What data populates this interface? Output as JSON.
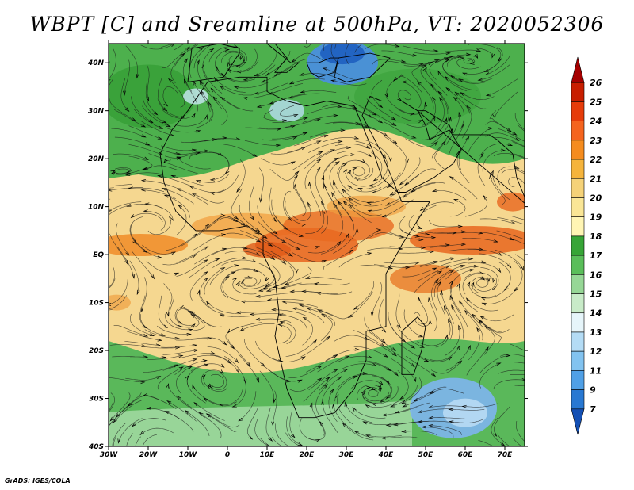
{
  "title": "WBPT [C] and Sreamline at 500hPa, VT: 2020052306",
  "footer": "GrADS: IGES/COLA",
  "map": {
    "lon_labels": [
      "30W",
      "20W",
      "10W",
      "0",
      "10E",
      "20E",
      "30E",
      "40E",
      "50E",
      "60E",
      "70E"
    ],
    "lat_labels": [
      "40N",
      "30N",
      "20N",
      "10N",
      "EQ",
      "10S",
      "20S",
      "30S",
      "40S"
    ],
    "lon_range": [
      -30,
      75
    ],
    "lat_range": [
      -40,
      44
    ]
  },
  "colorbar": {
    "labels": [
      "26",
      "25",
      "24",
      "23",
      "22",
      "21",
      "20",
      "19",
      "18",
      "17",
      "16",
      "15",
      "14",
      "13",
      "12",
      "11",
      "9",
      "7"
    ],
    "colors": [
      "#a50000",
      "#c81e00",
      "#e63c0a",
      "#f5641e",
      "#f58c1e",
      "#f5b43c",
      "#f5d278",
      "#fae696",
      "#fff5b4",
      "#37a537",
      "#5abe5a",
      "#96d796",
      "#c8ebc8",
      "#e6f5fa",
      "#b4dcf5",
      "#82c3f0",
      "#50a0e6",
      "#2878d2",
      "#1450b4"
    ]
  }
}
